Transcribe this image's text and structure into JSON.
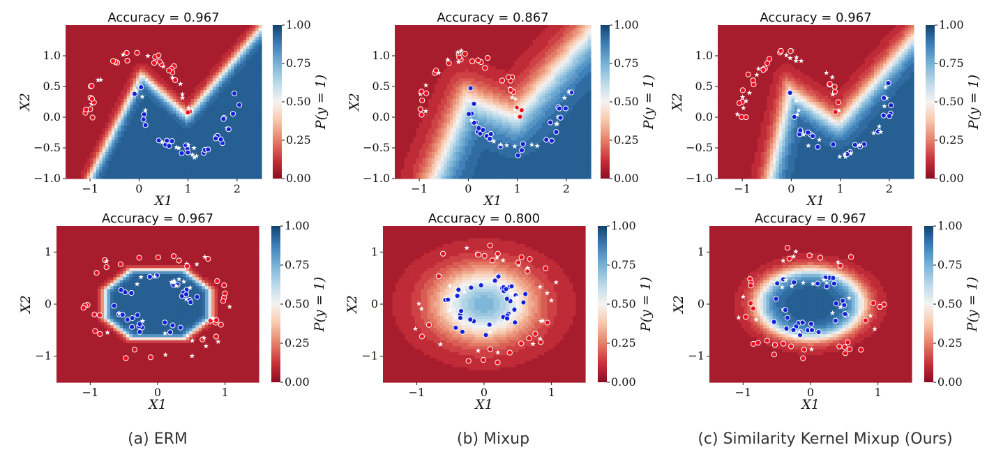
{
  "colors": {
    "class0": "#e8101e",
    "class1": "#1222d6",
    "test_point": "#ffffff",
    "background_low": "#913041",
    "background_high": "#31618f"
  },
  "colorbar": {
    "label": "P(y = 1)",
    "ticks": [
      "1.00",
      "0.75",
      "0.50",
      "0.25",
      "0.00"
    ],
    "range": [
      0,
      1
    ]
  },
  "captions": [
    "(a) ERM",
    "(b) Mixup",
    "(c) Similarity Kernel Mixup (Ours)"
  ],
  "chart_data": [
    {
      "type": "contour",
      "method": "ERM",
      "dataset": "moons",
      "title": "Accuracy = 0.967",
      "accuracy": 0.967,
      "xlabel": "X1",
      "ylabel": "X2",
      "xlim": [
        -1.5,
        2.5
      ],
      "ylim": [
        -1.0,
        1.5
      ],
      "xticks": [
        "−1",
        "0",
        "1",
        "2"
      ],
      "yticks": [
        "1.0",
        "0.5",
        "0.0",
        "−0.5",
        "−1.0"
      ]
    },
    {
      "type": "contour",
      "method": "Mixup",
      "dataset": "moons",
      "title": "Accuracy = 0.867",
      "accuracy": 0.867,
      "xlabel": "X1",
      "ylabel": "X2",
      "xlim": [
        -1.5,
        2.5
      ],
      "ylim": [
        -1.0,
        1.5
      ],
      "xticks": [
        "−1",
        "0",
        "1",
        "2"
      ],
      "yticks": [
        "1.0",
        "0.5",
        "0.0",
        "−0.5",
        "−1.0"
      ]
    },
    {
      "type": "contour",
      "method": "Similarity Kernel Mixup",
      "dataset": "moons",
      "title": "Accuracy = 0.967",
      "accuracy": 0.967,
      "xlabel": "X1",
      "ylabel": "X2",
      "xlim": [
        -1.5,
        2.5
      ],
      "ylim": [
        -1.0,
        1.5
      ],
      "xticks": [
        "−1",
        "0",
        "1",
        "2"
      ],
      "yticks": [
        "1.0",
        "0.5",
        "0.0",
        "−0.5",
        "−1.0"
      ]
    },
    {
      "type": "contour",
      "method": "ERM",
      "dataset": "circles",
      "title": "Accuracy = 0.967",
      "accuracy": 0.967,
      "xlabel": "X1",
      "ylabel": "X2",
      "xlim": [
        -1.5,
        1.5
      ],
      "ylim": [
        -1.5,
        1.5
      ],
      "xticks": [
        "−1",
        "0",
        "1"
      ],
      "yticks": [
        "1",
        "0",
        "−1"
      ]
    },
    {
      "type": "contour",
      "method": "Mixup",
      "dataset": "circles",
      "title": "Accuracy = 0.800",
      "accuracy": 0.8,
      "xlabel": "X1",
      "ylabel": "X2",
      "xlim": [
        -1.5,
        1.5
      ],
      "ylim": [
        -1.5,
        1.5
      ],
      "xticks": [
        "−1",
        "0",
        "1"
      ],
      "yticks": [
        "1",
        "0",
        "−1"
      ]
    },
    {
      "type": "contour",
      "method": "Similarity Kernel Mixup",
      "dataset": "circles",
      "title": "Accuracy = 0.967",
      "accuracy": 0.967,
      "xlabel": "X1",
      "ylabel": "X2",
      "xlim": [
        -1.5,
        1.5
      ],
      "ylim": [
        -1.5,
        1.5
      ],
      "xticks": [
        "−1",
        "0",
        "1"
      ],
      "yticks": [
        "1",
        "0",
        "−1"
      ]
    }
  ]
}
